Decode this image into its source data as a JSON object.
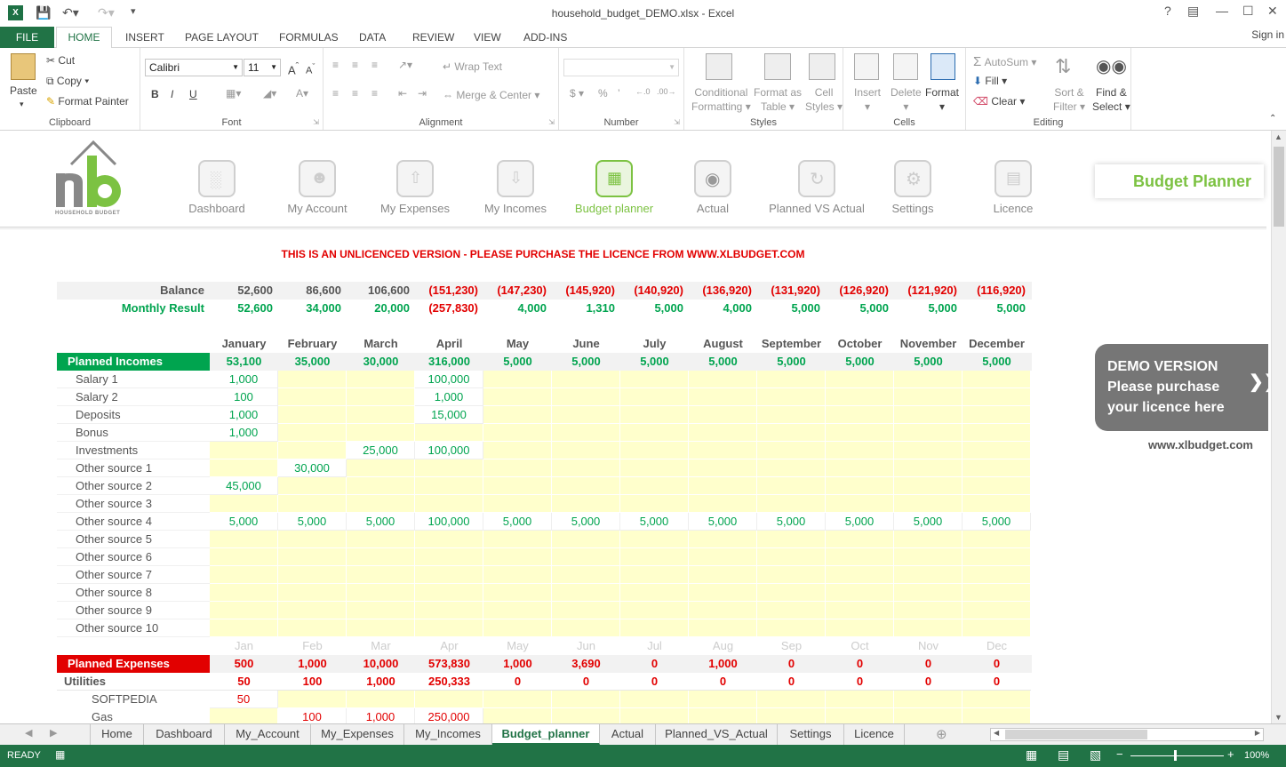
{
  "window": {
    "title": "household_budget_DEMO.xlsx - Excel"
  },
  "ribbon_tabs": [
    "FILE",
    "HOME",
    "INSERT",
    "PAGE LAYOUT",
    "FORMULAS",
    "DATA",
    "REVIEW",
    "VIEW",
    "ADD-INS"
  ],
  "signin": "Sign in",
  "clipboard": {
    "paste": "Paste",
    "cut": "Cut",
    "copy": "Copy",
    "format_painter": "Format Painter",
    "label": "Clipboard"
  },
  "font": {
    "name": "Calibri",
    "size": "11",
    "label": "Font"
  },
  "alignment": {
    "wrap": "Wrap Text",
    "merge": "Merge & Center",
    "label": "Alignment"
  },
  "number": {
    "label": "Number"
  },
  "styles": {
    "conditional": "Conditional",
    "formatting": "Formatting",
    "format_as": "Format as",
    "table": "Table",
    "cell": "Cell",
    "cell_styles": "Styles",
    "label": "Styles"
  },
  "cells": {
    "insert": "Insert",
    "delete": "Delete",
    "format": "Format",
    "label": "Cells"
  },
  "editing": {
    "autosum": "AutoSum",
    "fill": "Fill",
    "clear": "Clear",
    "sort": "Sort &",
    "filter": "Filter",
    "find": "Find &",
    "select": "Select",
    "label": "Editing"
  },
  "nav": [
    "Dashboard",
    "My Account",
    "My Expenses",
    "My Incomes",
    "Budget planner",
    "Actual",
    "Planned VS Actual",
    "Settings",
    "Licence"
  ],
  "logo_text": "HOUSEHOLD BUDGET",
  "bp_title": "Budget Planner",
  "unlicenced": "THIS IS AN UNLICENCED VERSION - PLEASE PURCHASE THE LICENCE FROM WWW.XLBUDGET.COM",
  "demo": {
    "l1": "DEMO VERSION",
    "l2": "Please purchase",
    "l3": "your licence here",
    "url": "www.xlbudget.com"
  },
  "balance": {
    "label": "Balance",
    "values": [
      "52,600",
      "86,600",
      "106,600",
      "(151,230)",
      "(147,230)",
      "(145,920)",
      "(140,920)",
      "(136,920)",
      "(131,920)",
      "(126,920)",
      "(121,920)",
      "(116,920)"
    ]
  },
  "monthly": {
    "label": "Monthly Result",
    "values": [
      "52,600",
      "34,000",
      "20,000",
      "(257,830)",
      "4,000",
      "1,310",
      "5,000",
      "4,000",
      "5,000",
      "5,000",
      "5,000",
      "5,000"
    ]
  },
  "months": [
    "January",
    "February",
    "March",
    "April",
    "May",
    "June",
    "July",
    "August",
    "September",
    "October",
    "November",
    "December"
  ],
  "months_short": [
    "Jan",
    "Feb",
    "Mar",
    "Apr",
    "May",
    "Jun",
    "Jul",
    "Aug",
    "Sep",
    "Oct",
    "Nov",
    "Dec"
  ],
  "incomes": {
    "label": "Planned Incomes",
    "totals": [
      "53,100",
      "35,000",
      "30,000",
      "316,000",
      "5,000",
      "5,000",
      "5,000",
      "5,000",
      "5,000",
      "5,000",
      "5,000",
      "5,000"
    ],
    "rows": [
      {
        "name": "Salary 1",
        "v": [
          "1,000",
          "",
          "",
          "100,000",
          "",
          "",
          "",
          "",
          "",
          "",
          "",
          ""
        ]
      },
      {
        "name": "Salary 2",
        "v": [
          "100",
          "",
          "",
          "1,000",
          "",
          "",
          "",
          "",
          "",
          "",
          "",
          ""
        ]
      },
      {
        "name": "Deposits",
        "v": [
          "1,000",
          "",
          "",
          "15,000",
          "",
          "",
          "",
          "",
          "",
          "",
          "",
          ""
        ]
      },
      {
        "name": "Bonus",
        "v": [
          "1,000",
          "",
          "",
          "",
          "",
          "",
          "",
          "",
          "",
          "",
          "",
          ""
        ]
      },
      {
        "name": "Investments",
        "v": [
          "",
          "",
          "25,000",
          "100,000",
          "",
          "",
          "",
          "",
          "",
          "",
          "",
          ""
        ]
      },
      {
        "name": "Other source 1",
        "v": [
          "",
          "30,000",
          "",
          "",
          "",
          "",
          "",
          "",
          "",
          "",
          "",
          ""
        ]
      },
      {
        "name": "Other source 2",
        "v": [
          "45,000",
          "",
          "",
          "",
          "",
          "",
          "",
          "",
          "",
          "",
          "",
          ""
        ]
      },
      {
        "name": "Other source 3",
        "v": [
          "",
          "",
          "",
          "",
          "",
          "",
          "",
          "",
          "",
          "",
          "",
          ""
        ]
      },
      {
        "name": "Other source 4",
        "v": [
          "5,000",
          "5,000",
          "5,000",
          "100,000",
          "5,000",
          "5,000",
          "5,000",
          "5,000",
          "5,000",
          "5,000",
          "5,000",
          "5,000"
        ]
      },
      {
        "name": "Other source 5",
        "v": [
          "",
          "",
          "",
          "",
          "",
          "",
          "",
          "",
          "",
          "",
          "",
          ""
        ]
      },
      {
        "name": "Other source 6",
        "v": [
          "",
          "",
          "",
          "",
          "",
          "",
          "",
          "",
          "",
          "",
          "",
          ""
        ]
      },
      {
        "name": "Other source 7",
        "v": [
          "",
          "",
          "",
          "",
          "",
          "",
          "",
          "",
          "",
          "",
          "",
          ""
        ]
      },
      {
        "name": "Other source 8",
        "v": [
          "",
          "",
          "",
          "",
          "",
          "",
          "",
          "",
          "",
          "",
          "",
          ""
        ]
      },
      {
        "name": "Other source 9",
        "v": [
          "",
          "",
          "",
          "",
          "",
          "",
          "",
          "",
          "",
          "",
          "",
          ""
        ]
      },
      {
        "name": "Other source 10",
        "v": [
          "",
          "",
          "",
          "",
          "",
          "",
          "",
          "",
          "",
          "",
          "",
          ""
        ]
      }
    ]
  },
  "expenses": {
    "label": "Planned Expenses",
    "totals": [
      "500",
      "1,000",
      "10,000",
      "573,830",
      "1,000",
      "3,690",
      "0",
      "1,000",
      "0",
      "0",
      "0",
      "0"
    ],
    "utilities": {
      "label": "Utilities",
      "v": [
        "50",
        "100",
        "1,000",
        "250,333",
        "0",
        "0",
        "0",
        "0",
        "0",
        "0",
        "0",
        "0"
      ]
    },
    "rows": [
      {
        "name": "SOFTPEDIA",
        "v": [
          "50",
          "",
          "",
          "",
          "",
          "",
          "",
          "",
          "",
          "",
          "",
          ""
        ]
      },
      {
        "name": "Gas",
        "v": [
          "",
          "100",
          "1,000",
          "250,000",
          "",
          "",
          "",
          "",
          "",
          "",
          "",
          ""
        ]
      }
    ]
  },
  "sheet_tabs": [
    "Home",
    "Dashboard",
    "My_Account",
    "My_Expenses",
    "My_Incomes",
    "Budget_planner",
    "Actual",
    "Planned_VS_Actual",
    "Settings",
    "Licence"
  ],
  "status": {
    "mode": "READY",
    "zoom": "100%"
  }
}
